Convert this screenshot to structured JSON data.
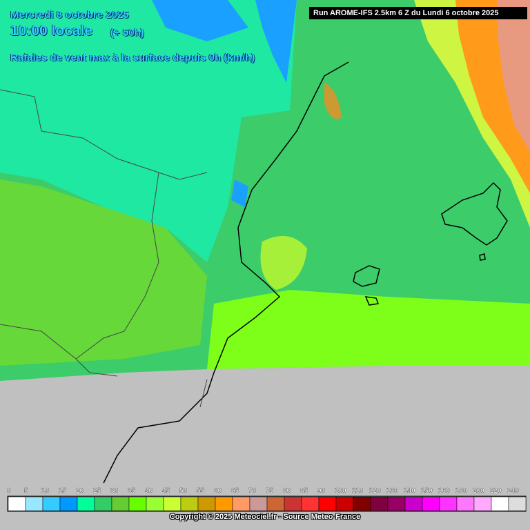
{
  "header": {
    "date": "Mercredi 8 octobre 2025",
    "time": "10:00 locale",
    "lead": "(+ 50h)",
    "field": "Rafales de vent max à la surface depuis 0h (km/h)",
    "run": "Run AROME-IFS 2.5km 6 Z du Lundi 6 octobre 2025"
  },
  "legend": {
    "items": [
      {
        "label": 0,
        "color": "#ffffff"
      },
      {
        "label": 5,
        "color": "#99e6ff"
      },
      {
        "label": 10,
        "color": "#33ccff"
      },
      {
        "label": 15,
        "color": "#0099ff"
      },
      {
        "label": 20,
        "color": "#00ff99"
      },
      {
        "label": 25,
        "color": "#33cc66"
      },
      {
        "label": 30,
        "color": "#66cc33"
      },
      {
        "label": 35,
        "color": "#66ff00"
      },
      {
        "label": 40,
        "color": "#99ff33"
      },
      {
        "label": 45,
        "color": "#ccff33"
      },
      {
        "label": 50,
        "color": "#bbcc11"
      },
      {
        "label": 55,
        "color": "#cc9900"
      },
      {
        "label": 60,
        "color": "#ff9900"
      },
      {
        "label": 65,
        "color": "#ff9966"
      },
      {
        "label": 70,
        "color": "#cc9999"
      },
      {
        "label": 75,
        "color": "#cc6633"
      },
      {
        "label": 80,
        "color": "#cc3333"
      },
      {
        "label": 85,
        "color": "#ff3333"
      },
      {
        "label": 90,
        "color": "#ff0000"
      },
      {
        "label": 100,
        "color": "#cc0000"
      },
      {
        "label": 110,
        "color": "#800000"
      },
      {
        "label": 120,
        "color": "#800040"
      },
      {
        "label": 130,
        "color": "#990066"
      },
      {
        "label": 140,
        "color": "#cc00cc"
      },
      {
        "label": 150,
        "color": "#ff00ff"
      },
      {
        "label": 160,
        "color": "#ff33ff"
      },
      {
        "label": 180,
        "color": "#ff77ff"
      },
      {
        "label": 200,
        "color": "#ffaaff"
      },
      {
        "label": 220,
        "color": "#ffffff"
      },
      {
        "label": 240,
        "color": "#dddddd"
      }
    ]
  },
  "footer": {
    "copyright": "Copyright © 2025 Meteociel.fr - Source Meteo-France"
  }
}
